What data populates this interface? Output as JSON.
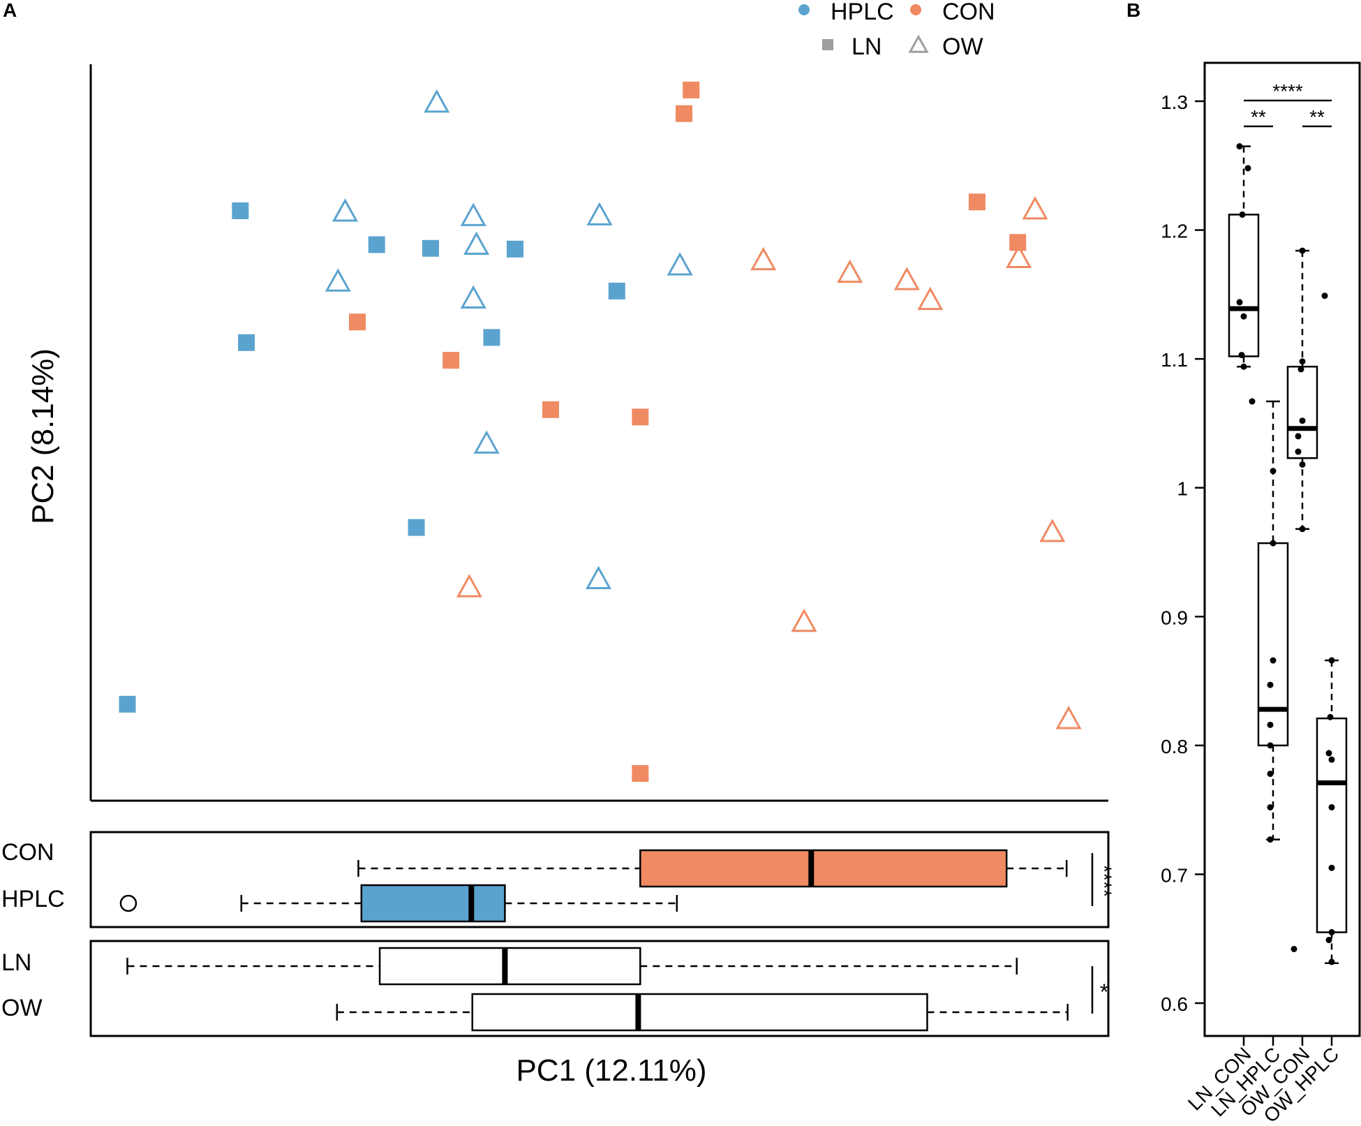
{
  "chart_data": [
    {
      "panel": "A",
      "type": "scatter",
      "xlabel": "PC1 (12.11%)",
      "ylabel": "PC2 (8.14%)",
      "xlim": [
        0,
        100
      ],
      "ylim": [
        0,
        100
      ],
      "legend": {
        "position": "top-right",
        "entries": [
          {
            "label": "HPLC",
            "symbol": "dot",
            "color": "#5ba3cf"
          },
          {
            "label": "CON",
            "symbol": "dot",
            "color": "#ef8a62"
          },
          {
            "label": "LN",
            "symbol": "filled-square",
            "color": "#9e9e9e"
          },
          {
            "label": "OW",
            "symbol": "open-triangle",
            "color": "#9e9e9e"
          }
        ]
      },
      "series": [
        {
          "name": "HPLC / LN",
          "marker": "filled-square",
          "color": "#5ba3cf",
          "x": [
            14.7,
            15.3,
            28.1,
            33.4,
            32.0,
            39.4,
            41.7,
            51.7,
            3.6
          ],
          "y": [
            80.1,
            62.2,
            75.5,
            75.0,
            37.1,
            62.9,
            74.9,
            69.2,
            13.1
          ]
        },
        {
          "name": "HPLC / OW",
          "marker": "open-triangle",
          "color": "#5ba3cf",
          "x": [
            34.0,
            25.0,
            37.6,
            37.9,
            50.0,
            24.3,
            37.6,
            57.9,
            38.9,
            49.9
          ],
          "y": [
            94.6,
            79.8,
            79.2,
            75.3,
            79.3,
            70.3,
            68.0,
            72.5,
            48.3,
            29.9
          ]
        },
        {
          "name": "CON / LN",
          "marker": "filled-square",
          "color": "#ef8a62",
          "x": [
            59.0,
            58.3,
            87.1,
            91.1,
            26.2,
            35.4,
            45.2,
            54.0,
            54.0
          ],
          "y": [
            96.5,
            93.3,
            81.3,
            75.8,
            65.0,
            59.8,
            53.1,
            52.1,
            3.7
          ]
        },
        {
          "name": "CON / OW",
          "marker": "open-triangle",
          "color": "#ef8a62",
          "x": [
            92.8,
            66.1,
            74.6,
            80.2,
            82.5,
            91.2,
            94.5,
            37.2,
            70.1,
            96.1
          ],
          "y": [
            80.1,
            73.2,
            71.5,
            70.5,
            67.8,
            73.5,
            36.3,
            28.8,
            24.1,
            10.9
          ]
        }
      ]
    },
    {
      "panel": "A-bottom",
      "type": "boxplot",
      "orientation": "horizontal",
      "axis": "PC1",
      "groups": [
        {
          "label": "CON",
          "color": "#ef8a62",
          "whisker_low": 26.3,
          "q1": 54.0,
          "median": 70.8,
          "q3": 90.0,
          "whisker_high": 95.9,
          "outliers": []
        },
        {
          "label": "HPLC",
          "color": "#5ba3cf",
          "whisker_low": 14.8,
          "q1": 26.6,
          "median": 37.4,
          "q3": 40.7,
          "whisker_high": 57.6,
          "outliers": [
            3.7
          ]
        },
        {
          "label": "LN",
          "color": "#ffffff",
          "whisker_low": 3.6,
          "q1": 28.4,
          "median": 40.7,
          "q3": 54.0,
          "whisker_high": 91.0,
          "outliers": []
        },
        {
          "label": "OW",
          "color": "#ffffff",
          "whisker_low": 24.2,
          "q1": 37.5,
          "median": 53.8,
          "q3": 82.2,
          "whisker_high": 96.0,
          "outliers": []
        }
      ],
      "annotations": [
        {
          "between": [
            "CON",
            "HPLC"
          ],
          "text": "****"
        },
        {
          "between": [
            "LN",
            "OW"
          ],
          "text": "*"
        }
      ]
    },
    {
      "panel": "B",
      "type": "boxplot",
      "orientation": "vertical",
      "ylim": [
        0.59,
        1.32
      ],
      "yticks": [
        {
          "value": 0.6,
          "label": "0.6"
        },
        {
          "value": 0.7,
          "label": "0.7"
        },
        {
          "value": 0.8,
          "label": "0.8"
        },
        {
          "value": 0.9,
          "label": "0.9"
        },
        {
          "value": 1.0,
          "label": "1"
        },
        {
          "value": 1.1,
          "label": "1.1"
        },
        {
          "value": 1.2,
          "label": "1.2"
        },
        {
          "value": 1.3,
          "label": "1.3"
        }
      ],
      "categories": [
        "LN_CON",
        "LN_HPLC",
        "OW_CON",
        "OW_HPLC"
      ],
      "boxes": [
        {
          "label": "LN_CON",
          "whisker_low": 1.094,
          "q1": 1.102,
          "median": 1.139,
          "q3": 1.212,
          "whisker_high": 1.265,
          "points": [
            1.265,
            1.248,
            1.212,
            1.144,
            1.133,
            1.103,
            1.094
          ]
        },
        {
          "label": "LN_HPLC",
          "whisker_low": 0.727,
          "q1": 0.8,
          "median": 0.828,
          "q3": 0.957,
          "whisker_high": 1.067,
          "points": [
            1.067,
            1.013,
            0.957,
            0.866,
            0.847,
            0.816,
            0.8,
            0.778,
            0.752,
            0.727
          ]
        },
        {
          "label": "OW_CON",
          "whisker_low": 0.968,
          "q1": 1.023,
          "median": 1.046,
          "q3": 1.094,
          "whisker_high": 1.184,
          "points": [
            1.184,
            1.098,
            1.092,
            1.052,
            1.04,
            1.028,
            1.018,
            0.968,
            0.642
          ]
        },
        {
          "label": "OW_HPLC",
          "whisker_low": 0.631,
          "q1": 0.655,
          "median": 0.771,
          "q3": 0.821,
          "whisker_high": 0.866,
          "points": [
            1.149,
            0.866,
            0.822,
            0.794,
            0.789,
            0.752,
            0.705,
            0.655,
            0.649,
            0.632
          ]
        }
      ],
      "comparisons": [
        {
          "pair": [
            "LN_CON",
            "LN_HPLC"
          ],
          "text": "**"
        },
        {
          "pair": [
            "OW_CON",
            "OW_HPLC"
          ],
          "text": "**"
        },
        {
          "pair": [
            "LN_CON",
            "OW_HPLC"
          ],
          "text": "****"
        }
      ]
    }
  ],
  "labels": {
    "panel_a": "A",
    "panel_b": "B"
  }
}
